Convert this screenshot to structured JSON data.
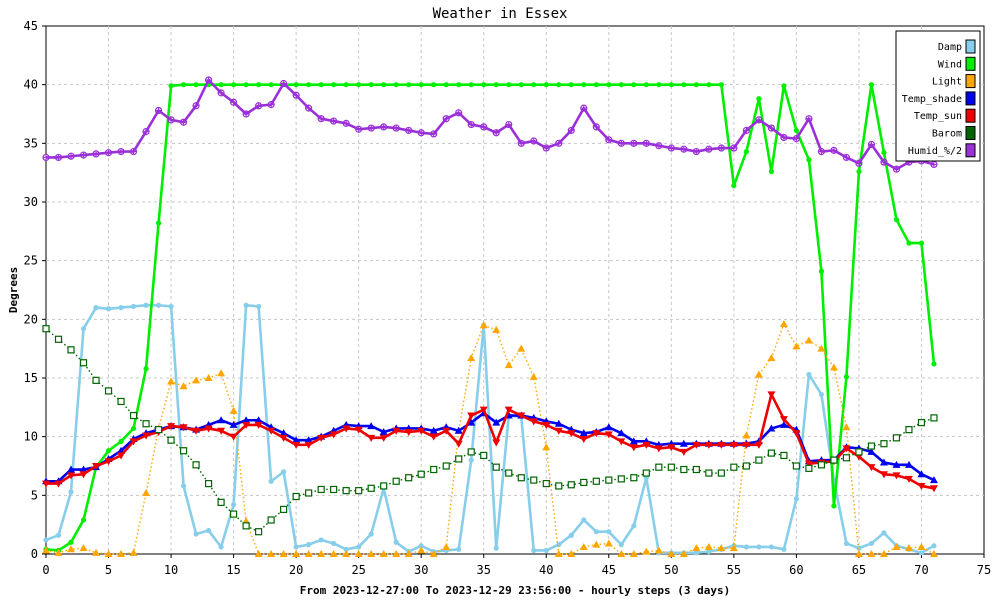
{
  "chart_data": {
    "type": "line",
    "title": "Weather in Essex",
    "xlabel": "From 2023-12-27:00 To 2023-12-29 23:56:00 - hourly steps (3 days)",
    "ylabel": "Degrees",
    "xlim": [
      0,
      75
    ],
    "ylim": [
      0,
      45
    ],
    "x_ticks": [
      0,
      5,
      10,
      15,
      20,
      25,
      30,
      35,
      40,
      45,
      50,
      55,
      60,
      65,
      70,
      75
    ],
    "y_ticks": [
      0,
      5,
      10,
      15,
      20,
      25,
      30,
      35,
      40,
      45
    ],
    "grid": true,
    "legend_position": "top-right",
    "series": [
      {
        "name": "Damp",
        "color": "#87ceeb",
        "marker": "circle",
        "dash": "solid",
        "values": [
          1.2,
          1.6,
          5.3,
          19.2,
          21.0,
          20.9,
          21.0,
          21.1,
          21.2,
          21.2,
          21.1,
          5.8,
          1.7,
          2.0,
          0.6,
          4.2,
          21.2,
          21.1,
          6.2,
          7.0,
          0.6,
          0.8,
          1.2,
          0.9,
          0.4,
          0.6,
          1.7,
          5.6,
          1.0,
          0.2,
          0.7,
          0.2,
          0.3,
          0.4,
          8.0,
          19.5,
          0.5,
          11.8,
          11.7,
          0.3,
          0.3,
          0.8,
          1.6,
          2.9,
          1.9,
          1.9,
          0.8,
          2.4,
          6.5,
          0.1,
          0.1,
          0.1,
          0.1,
          0.2,
          0.4,
          0.7,
          0.6,
          0.6,
          0.6,
          0.4,
          4.7,
          15.3,
          13.6,
          6.3,
          0.9,
          0.5,
          0.9,
          1.8,
          0.7,
          0.4,
          0.1,
          0.7
        ]
      },
      {
        "name": "Wind",
        "color": "#00ee00",
        "marker": "circle",
        "dash": "solid",
        "values": [
          0.4,
          0.3,
          1.0,
          2.9,
          7.4,
          8.8,
          9.6,
          10.7,
          15.8,
          28.2,
          39.9,
          40,
          40,
          40,
          40,
          40,
          40,
          40,
          40,
          40,
          40,
          40,
          40,
          40,
          40,
          40,
          40,
          40,
          40,
          40,
          40,
          40,
          40,
          40,
          40,
          40,
          40,
          40,
          40,
          40,
          40,
          40,
          40,
          40,
          40,
          40,
          40,
          40,
          40,
          40,
          40,
          40,
          40,
          40,
          40,
          31.4,
          34.3,
          38.8,
          32.6,
          39.9,
          36.1,
          33.6,
          24.1,
          4.1,
          15.1,
          32.6,
          40.0,
          34.2,
          28.5,
          26.5,
          26.5,
          16.2
        ]
      },
      {
        "name": "Light",
        "color": "#ffa500",
        "marker": "triangle",
        "dash": "dotted",
        "values": [
          0.3,
          0.1,
          0.4,
          0.5,
          0.1,
          0.0,
          0.0,
          0.1,
          5.2,
          10.7,
          14.7,
          14.3,
          14.8,
          15.0,
          15.4,
          12.2,
          2.8,
          0.0,
          0.0,
          0.0,
          0.0,
          0.0,
          0.0,
          0.0,
          0.0,
          0.0,
          0.0,
          0.0,
          0.0,
          0.0,
          0.3,
          0.0,
          0.6,
          10.5,
          16.7,
          19.5,
          19.1,
          16.1,
          17.5,
          15.1,
          9.1,
          0.0,
          0.0,
          0.6,
          0.8,
          0.9,
          0.0,
          0.0,
          0.2,
          0.3,
          0.0,
          0.0,
          0.5,
          0.6,
          0.5,
          0.5,
          10.1,
          15.3,
          16.7,
          19.6,
          17.7,
          18.2,
          17.5,
          15.9,
          10.8,
          0.0,
          0.0,
          0.0,
          0.6,
          0.5,
          0.6,
          0.0
        ]
      },
      {
        "name": "Temp_shade",
        "color": "#0000ee",
        "marker": "triangle",
        "dash": "solid",
        "values": [
          6.2,
          6.2,
          7.2,
          7.2,
          7.4,
          8.1,
          8.8,
          9.8,
          10.3,
          10.6,
          10.9,
          10.8,
          10.6,
          11.0,
          11.4,
          11.0,
          11.4,
          11.4,
          10.8,
          10.3,
          9.7,
          9.7,
          10.0,
          10.5,
          11.0,
          10.9,
          10.9,
          10.4,
          10.7,
          10.7,
          10.7,
          10.5,
          10.8,
          10.5,
          11.2,
          12.0,
          11.2,
          11.8,
          11.8,
          11.6,
          11.3,
          11.1,
          10.6,
          10.3,
          10.4,
          10.8,
          10.3,
          9.6,
          9.6,
          9.3,
          9.4,
          9.4,
          9.4,
          9.4,
          9.4,
          9.4,
          9.4,
          9.6,
          10.7,
          11.0,
          10.6,
          7.9,
          8.0,
          8.0,
          9.1,
          9.0,
          8.7,
          7.8,
          7.6,
          7.6,
          6.8,
          6.3
        ]
      },
      {
        "name": "Temp_sun",
        "color": "#ee0000",
        "marker": "triangle-down",
        "dash": "solid",
        "values": [
          6.0,
          6.0,
          6.7,
          6.8,
          7.5,
          7.9,
          8.4,
          9.6,
          10.1,
          10.4,
          10.9,
          10.8,
          10.5,
          10.7,
          10.5,
          10.0,
          11.0,
          11.0,
          10.5,
          9.9,
          9.3,
          9.3,
          9.9,
          10.2,
          10.7,
          10.6,
          9.9,
          9.9,
          10.5,
          10.4,
          10.5,
          10.0,
          10.5,
          9.4,
          11.8,
          12.3,
          9.5,
          12.3,
          11.8,
          11.3,
          11.0,
          10.5,
          10.3,
          9.8,
          10.3,
          10.2,
          9.6,
          9.1,
          9.3,
          9.0,
          9.1,
          8.7,
          9.3,
          9.3,
          9.3,
          9.3,
          9.3,
          9.3,
          13.6,
          11.5,
          10.3,
          7.7,
          7.8,
          7.9,
          9.0,
          8.3,
          7.4,
          6.8,
          6.7,
          6.4,
          5.8,
          5.6
        ]
      },
      {
        "name": "Barom",
        "color": "#006400",
        "marker": "square",
        "dash": "dotted",
        "values": [
          19.2,
          18.3,
          17.4,
          16.3,
          14.8,
          13.9,
          13.0,
          11.8,
          11.1,
          10.6,
          9.7,
          8.8,
          7.6,
          6.0,
          4.4,
          3.4,
          2.4,
          1.9,
          2.9,
          3.8,
          4.9,
          5.2,
          5.5,
          5.5,
          5.4,
          5.4,
          5.6,
          5.8,
          6.2,
          6.5,
          6.8,
          7.2,
          7.5,
          8.1,
          8.7,
          8.4,
          7.4,
          6.9,
          6.5,
          6.3,
          6.0,
          5.8,
          5.9,
          6.1,
          6.2,
          6.3,
          6.4,
          6.5,
          6.9,
          7.4,
          7.4,
          7.2,
          7.2,
          6.9,
          6.9,
          7.4,
          7.5,
          8.0,
          8.6,
          8.4,
          7.5,
          7.3,
          7.6,
          8.0,
          8.2,
          8.7,
          9.2,
          9.4,
          9.9,
          10.6,
          11.2,
          11.6
        ]
      },
      {
        "name": "Humid_%/2",
        "color": "#9b30d9",
        "marker": "circle-plus",
        "dash": "solid",
        "values": [
          33.8,
          33.8,
          33.9,
          34.0,
          34.1,
          34.2,
          34.3,
          34.3,
          36.0,
          37.8,
          37.0,
          36.8,
          38.2,
          40.4,
          39.3,
          38.5,
          37.5,
          38.2,
          38.3,
          40.1,
          39.1,
          38.0,
          37.1,
          36.9,
          36.7,
          36.2,
          36.3,
          36.4,
          36.3,
          36.1,
          35.9,
          35.8,
          37.1,
          37.6,
          36.6,
          36.4,
          35.9,
          36.6,
          35.0,
          35.2,
          34.6,
          35.0,
          36.1,
          38.0,
          36.4,
          35.3,
          35.0,
          35.0,
          35.0,
          34.8,
          34.6,
          34.5,
          34.3,
          34.5,
          34.6,
          34.6,
          36.1,
          37.0,
          36.3,
          35.5,
          35.4,
          37.1,
          34.3,
          34.4,
          33.8,
          33.3,
          34.9,
          33.4,
          32.8,
          33.4,
          33.5,
          33.2
        ]
      }
    ]
  }
}
